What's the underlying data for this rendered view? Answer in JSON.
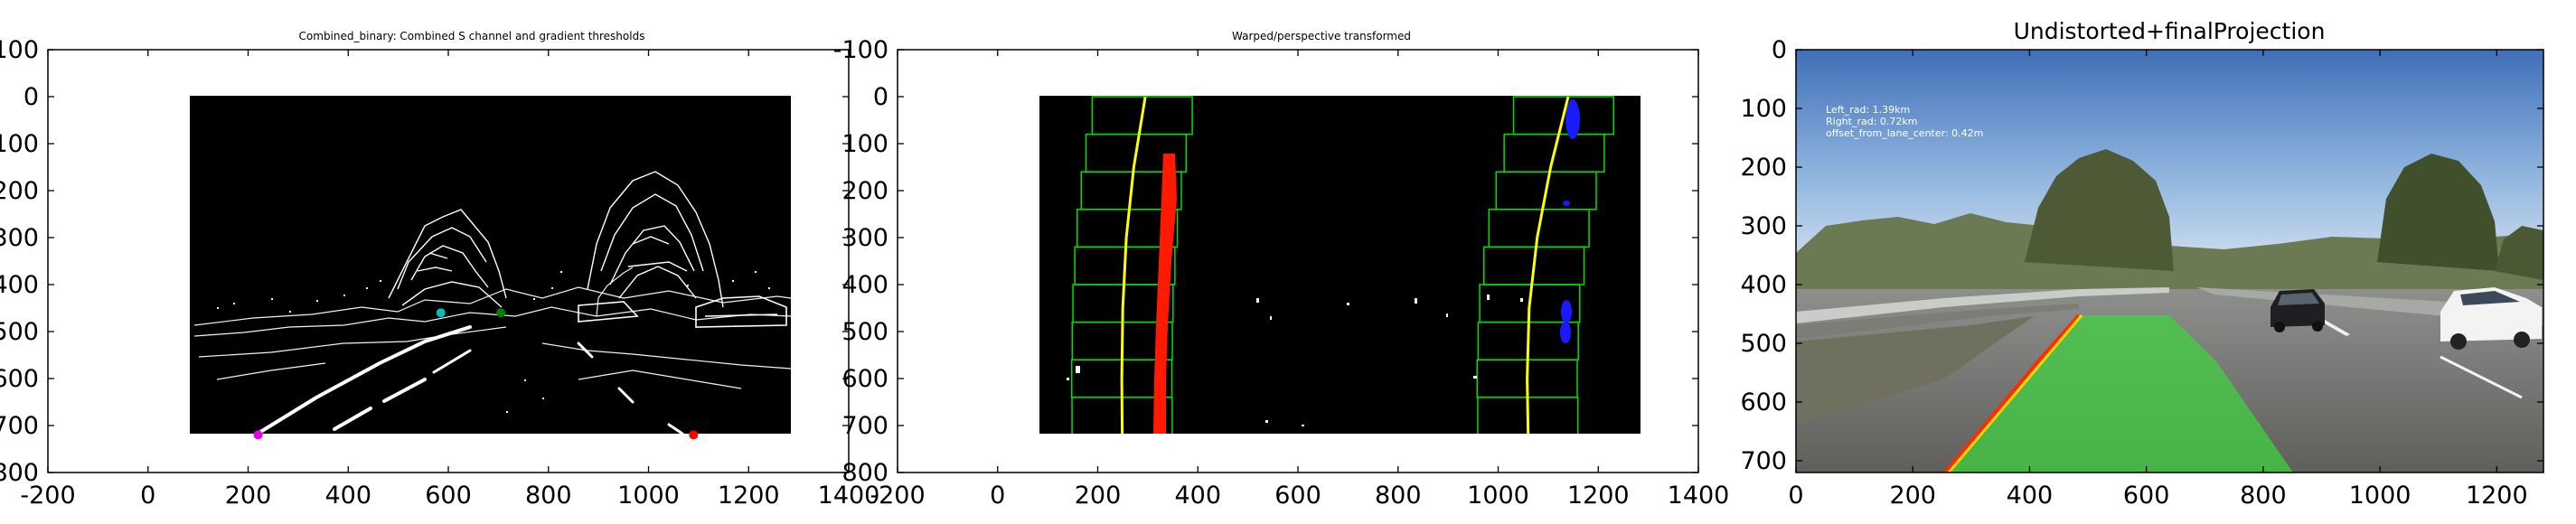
{
  "chart_data": [
    {
      "type": "image",
      "title": "Combined_binary: Combined S channel and gradient thresholds",
      "xlim": [
        -200,
        1400
      ],
      "ylim": [
        800,
        -100
      ],
      "xticks": [
        -200,
        0,
        200,
        400,
        600,
        800,
        1000,
        1200,
        1400
      ],
      "yticks": [
        -100,
        0,
        100,
        200,
        300,
        400,
        500,
        600,
        700,
        800
      ],
      "image_extent": {
        "x": [
          0,
          1280
        ],
        "y": [
          0,
          720
        ]
      },
      "points": [
        {
          "x": 220,
          "y": 720,
          "color": "#e600e6"
        },
        {
          "x": 1090,
          "y": 720,
          "color": "#ff0000"
        },
        {
          "x": 585,
          "y": 460,
          "color": "#00bfbf"
        },
        {
          "x": 705,
          "y": 460,
          "color": "#008000"
        }
      ]
    },
    {
      "type": "image",
      "title": "Warped/perspective transformed",
      "xlim": [
        -200,
        1400
      ],
      "ylim": [
        800,
        -100
      ],
      "xticks": [
        -200,
        0,
        200,
        400,
        600,
        800,
        1000,
        1200,
        1400
      ],
      "yticks": [
        -100,
        0,
        100,
        200,
        300,
        400,
        500,
        600,
        700,
        800
      ],
      "image_extent": {
        "x": [
          0,
          1280
        ],
        "y": [
          0,
          720
        ]
      },
      "lane_fits": [
        {
          "name": "left",
          "color": "#ffff00",
          "points": [
            [
              295,
              0
            ],
            [
              272,
              150
            ],
            [
              257,
              300
            ],
            [
              250,
              450
            ],
            [
              248,
              600
            ],
            [
              249,
              720
            ]
          ]
        },
        {
          "name": "right",
          "color": "#ffff00",
          "points": [
            [
              1140,
              0
            ],
            [
              1105,
              150
            ],
            [
              1078,
              300
            ],
            [
              1062,
              450
            ],
            [
              1058,
              600
            ],
            [
              1060,
              720
            ]
          ]
        }
      ]
    },
    {
      "type": "image",
      "title": "Undistorted+finalProjection",
      "xlim": [
        0,
        1280
      ],
      "ylim": [
        720,
        0
      ],
      "xticks": [
        0,
        200,
        400,
        600,
        800,
        1000,
        1200
      ],
      "yticks": [
        0,
        100,
        200,
        300,
        400,
        500,
        600,
        700
      ],
      "annotations": [
        "Left_rad: 1.39km",
        "Right_rad: 0.72km",
        "offset_from_lane_center: 0.42m"
      ]
    }
  ]
}
